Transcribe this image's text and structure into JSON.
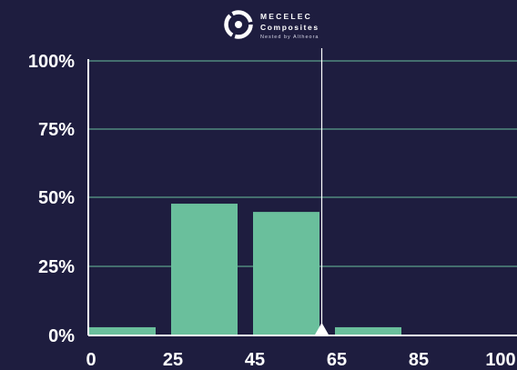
{
  "logo": {
    "line1": "MECELEC",
    "line2": "Composites",
    "line3": "Nested by Altheora"
  },
  "colors": {
    "background": "#1e1d3f",
    "bar": "#6abf9c",
    "grid": "#6abf9c",
    "axis": "#ffffff",
    "marker": "#ffffff"
  },
  "chart_data": {
    "type": "bar",
    "x_ticks": [
      "0",
      "25",
      "45",
      "65",
      "85",
      "100"
    ],
    "y_ticks": [
      "0%",
      "25%",
      "50%",
      "75%",
      "100%"
    ],
    "ylim": [
      0,
      100
    ],
    "bins": [
      {
        "from": 0,
        "to": 25,
        "value": 3
      },
      {
        "from": 25,
        "to": 45,
        "value": 48
      },
      {
        "from": 45,
        "to": 65,
        "value": 45
      },
      {
        "from": 65,
        "to": 85,
        "value": 3
      },
      {
        "from": 85,
        "to": 100,
        "value": 0
      }
    ],
    "marker_x": 62,
    "grid": true
  }
}
